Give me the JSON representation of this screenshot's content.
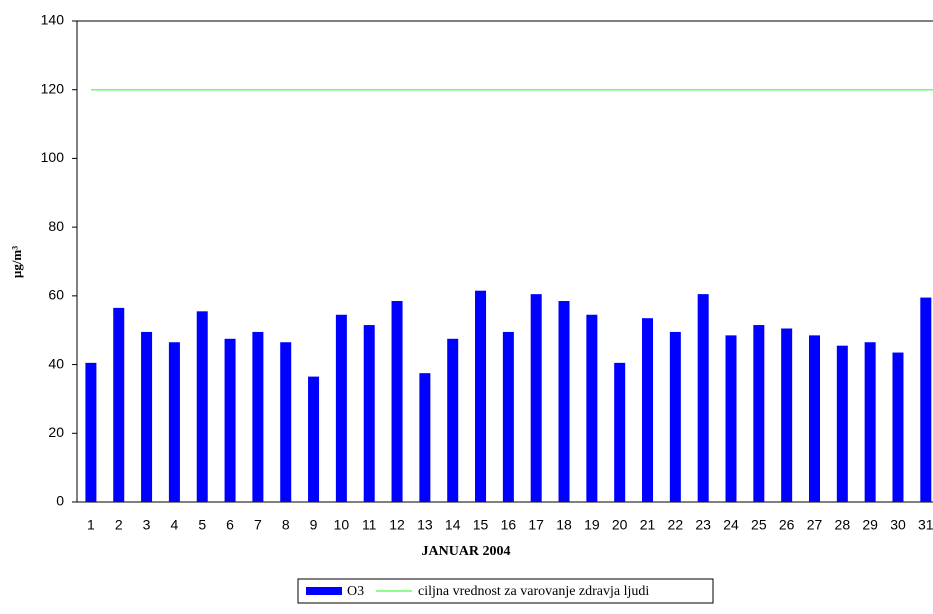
{
  "chart_data": {
    "type": "bar",
    "x_label": "JANUAR 2004",
    "y_label": "µg/m³",
    "categories": [
      "1",
      "2",
      "3",
      "4",
      "5",
      "6",
      "7",
      "8",
      "9",
      "10",
      "11",
      "12",
      "13",
      "14",
      "15",
      "16",
      "17",
      "18",
      "19",
      "20",
      "21",
      "22",
      "23",
      "24",
      "25",
      "26",
      "27",
      "28",
      "29",
      "30",
      "31"
    ],
    "series": [
      {
        "name": "O3",
        "color": "#0000ff",
        "values": [
          40.5,
          56.5,
          49.5,
          46.5,
          55.5,
          47.5,
          49.5,
          46.5,
          36.5,
          54.5,
          51.5,
          58.5,
          37.5,
          47.5,
          61.5,
          49.5,
          60.5,
          58.5,
          54.5,
          40.5,
          53.5,
          49.5,
          60.5,
          48.5,
          51.5,
          50.5,
          48.5,
          45.5,
          46.5,
          43.5,
          59.5
        ]
      }
    ],
    "reference_line": {
      "name": "ciljna vrednost za varovanje zdravja ljudi",
      "color": "#66ff66",
      "value": 120
    },
    "ylim": [
      0,
      140
    ],
    "yticks": [
      0,
      20,
      40,
      60,
      80,
      100,
      120,
      140
    ]
  }
}
